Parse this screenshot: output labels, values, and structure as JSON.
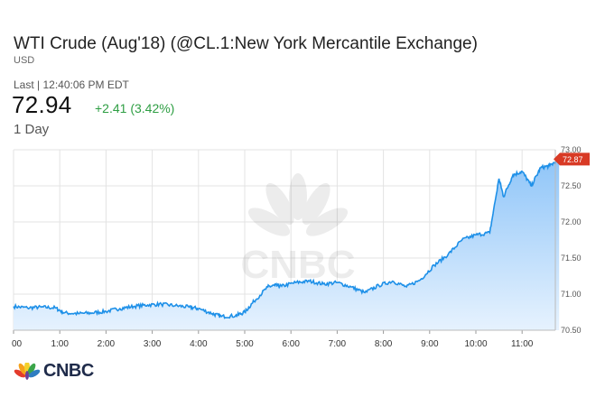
{
  "header": {
    "title": "WTI Crude (Aug'18) (@CL.1:New York Mercantile Exchange)",
    "currency": "USD",
    "last_label": "Last | 12:40:06 PM EDT",
    "price": "72.94",
    "change": "+2.41 (3.42%)",
    "range": "1 Day"
  },
  "colors": {
    "line": "#1e90e8",
    "fill_top": "#8fc5f8",
    "fill_bottom": "#e6f2fe",
    "up": "#2e9e43",
    "marker": "#d83a25",
    "grid": "#e3e3e3"
  },
  "logo": {
    "text": "CNBC",
    "watermark": "CNBC"
  },
  "chart_data": {
    "type": "area",
    "x_ticks": [
      "00",
      "1:00",
      "2:00",
      "3:00",
      "4:00",
      "5:00",
      "6:00",
      "7:00",
      "8:00",
      "9:00",
      "10:00",
      "11:00"
    ],
    "y_ticks": [
      "73.00",
      "72.50",
      "72.00",
      "71.50",
      "71.00",
      "70.50"
    ],
    "ylim": [
      70.5,
      73.0
    ],
    "xlim": [
      0,
      11.85
    ],
    "last_marker": "72.87",
    "grid": true,
    "series": [
      {
        "x": [
          0,
          0.3,
          0.6,
          0.9,
          1.1,
          1.4,
          1.7,
          2.0,
          2.3,
          2.6,
          2.9,
          3.2,
          3.5,
          3.8,
          4.0,
          4.3,
          4.5,
          4.8,
          5.0,
          5.2,
          5.5,
          5.65,
          5.8,
          6.1,
          6.4,
          6.7,
          7.0,
          7.3,
          7.6,
          7.9,
          8.2,
          8.5,
          8.8,
          9.1,
          9.4,
          9.7,
          10.0,
          10.3,
          10.5,
          10.6,
          10.8,
          11.0,
          11.2,
          11.4,
          11.6,
          11.8
        ],
        "values": [
          70.83,
          70.81,
          70.82,
          70.81,
          70.74,
          70.73,
          70.74,
          70.76,
          70.8,
          70.83,
          70.85,
          70.86,
          70.84,
          70.82,
          70.8,
          70.73,
          70.69,
          70.7,
          70.75,
          70.9,
          71.1,
          71.12,
          71.11,
          71.16,
          71.18,
          71.14,
          71.16,
          71.1,
          71.02,
          71.12,
          71.18,
          71.1,
          71.2,
          71.4,
          71.55,
          71.75,
          71.82,
          71.85,
          72.6,
          72.35,
          72.65,
          72.7,
          72.5,
          72.75,
          72.78,
          72.87
        ]
      }
    ]
  }
}
